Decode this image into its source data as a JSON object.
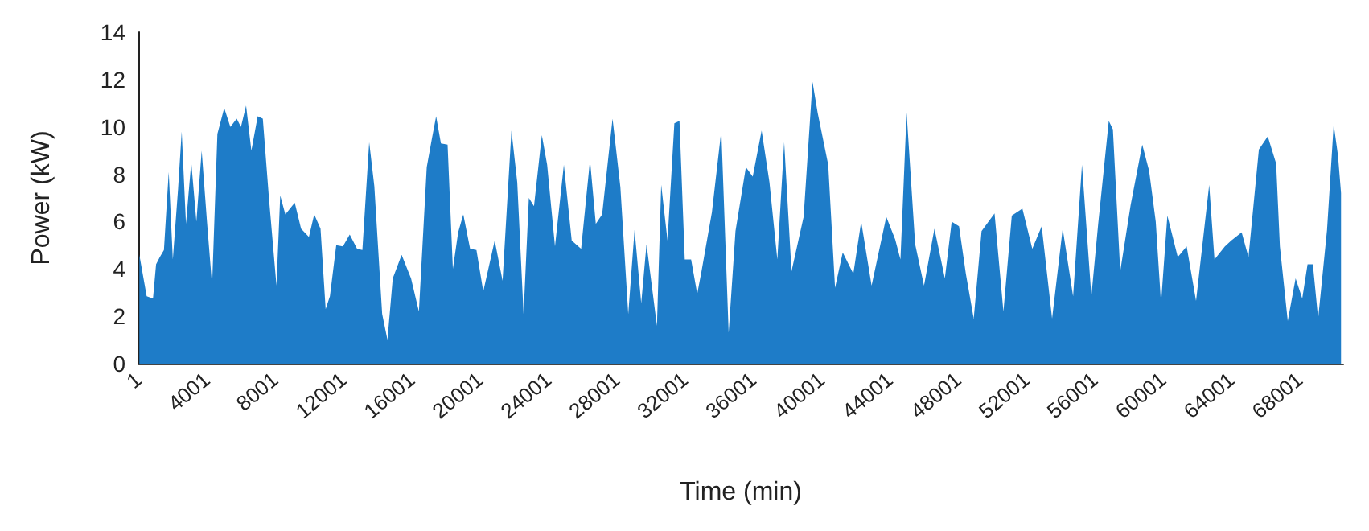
{
  "chart_data": {
    "type": "area",
    "xlabel": "Time (min)",
    "ylabel": "Power (kW)",
    "xlim": [
      1,
      70560
    ],
    "xticks": [
      1,
      4001,
      8001,
      12001,
      16001,
      20001,
      24001,
      28001,
      32001,
      36001,
      40001,
      44001,
      48001,
      52001,
      56001,
      60001,
      64001,
      68001
    ],
    "ylim": [
      0,
      14
    ],
    "yticks": [
      0,
      2,
      4,
      6,
      8,
      10,
      12,
      14
    ],
    "marker": "none",
    "series": [
      {
        "color": "#1e7cc8",
        "x": [
          60,
          490,
          860,
          1040,
          1260,
          1500,
          1780,
          2020,
          2330,
          2540,
          2790,
          3100,
          3400,
          3710,
          4020,
          4320,
          4630,
          5030,
          5390,
          5760,
          6010,
          6310,
          6620,
          6990,
          7290,
          7660,
          8090,
          8310,
          8610,
          9160,
          9530,
          9990,
          10300,
          10670,
          10970,
          11220,
          11590,
          11980,
          12380,
          12810,
          13120,
          13520,
          13820,
          14280,
          14590,
          14900,
          15420,
          15970,
          16430,
          16890,
          17190,
          17440,
          17720,
          18110,
          18420,
          18730,
          19030,
          19430,
          19800,
          20200,
          20870,
          21330,
          21850,
          22190,
          22560,
          22870,
          23170,
          23630,
          23940,
          24400,
          24920,
          25380,
          25930,
          26450,
          26790,
          27160,
          27770,
          28230,
          28690,
          29060,
          29450,
          29760,
          30370,
          30620,
          30990,
          31390,
          31690,
          32000,
          32370,
          32730,
          32980,
          33590,
          34140,
          34570,
          34970,
          35580,
          35980,
          36500,
          36960,
          37420,
          37820,
          38250,
          38960,
          39480,
          39780,
          40400,
          40800,
          41250,
          41870,
          42330,
          42940,
          43800,
          44320,
          44630,
          44990,
          45490,
          46010,
          46620,
          47230,
          47630,
          48060,
          48460,
          48920,
          49380,
          50140,
          50660,
          51150,
          51770,
          52350,
          52900,
          53510,
          54130,
          54740,
          55260,
          55810,
          56210,
          56830,
          57070,
          57500,
          58110,
          58790,
          59190,
          59580,
          59890,
          60260,
          60870,
          61390,
          61940,
          62710,
          63020,
          63630,
          64000,
          64610,
          65010,
          65620,
          66140,
          66630,
          66850,
          67310,
          67770,
          68160,
          68470,
          68780,
          69090,
          69610,
          70000,
          70250,
          70430
        ],
        "values": [
          4.6,
          2.85,
          2.75,
          4.2,
          4.5,
          4.8,
          8.1,
          4.4,
          7.4,
          9.8,
          5.9,
          8.5,
          6.0,
          9.0,
          6.0,
          3.3,
          9.7,
          10.8,
          10.0,
          10.35,
          10.0,
          10.9,
          9.0,
          10.45,
          10.35,
          6.9,
          3.3,
          7.1,
          6.3,
          6.8,
          5.7,
          5.35,
          6.3,
          5.7,
          2.3,
          2.85,
          5.0,
          4.95,
          5.45,
          4.85,
          4.8,
          9.35,
          7.5,
          2.1,
          1.0,
          3.6,
          4.6,
          3.6,
          2.2,
          8.3,
          9.5,
          10.45,
          9.3,
          9.25,
          4.0,
          5.55,
          6.3,
          4.85,
          4.8,
          3.05,
          5.2,
          3.5,
          9.85,
          7.65,
          2.1,
          7.0,
          6.65,
          9.65,
          8.4,
          4.95,
          8.4,
          5.2,
          4.85,
          8.6,
          5.9,
          6.3,
          10.35,
          7.45,
          2.1,
          5.65,
          2.55,
          5.05,
          1.6,
          7.55,
          5.2,
          10.15,
          10.25,
          4.4,
          4.4,
          2.95,
          3.9,
          6.4,
          9.85,
          1.3,
          5.6,
          8.3,
          7.9,
          9.85,
          7.65,
          4.4,
          9.35,
          3.9,
          6.2,
          11.9,
          10.6,
          8.4,
          3.2,
          4.7,
          3.8,
          6.0,
          3.3,
          6.2,
          5.25,
          4.4,
          10.6,
          5.05,
          3.3,
          5.7,
          3.6,
          6.0,
          5.8,
          3.8,
          1.9,
          5.6,
          6.35,
          2.2,
          6.25,
          6.55,
          4.85,
          5.8,
          1.9,
          5.7,
          2.85,
          8.4,
          2.85,
          5.9,
          10.25,
          9.9,
          3.9,
          6.7,
          9.25,
          8.15,
          6.0,
          2.55,
          6.25,
          4.5,
          4.95,
          2.65,
          7.55,
          4.4,
          4.95,
          5.2,
          5.55,
          4.5,
          9.05,
          9.6,
          8.45,
          4.95,
          1.8,
          3.6,
          2.75,
          4.2,
          4.2,
          1.9,
          5.65,
          10.1,
          8.8,
          7.2
        ]
      }
    ]
  }
}
